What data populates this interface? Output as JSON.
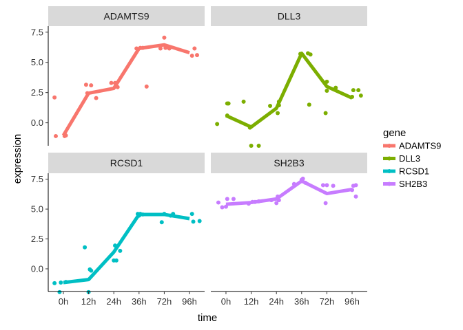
{
  "chart_data": {
    "type": "line",
    "facet_wrap": true,
    "categories": [
      "0h",
      "12h",
      "24h",
      "36h",
      "72h",
      "96h"
    ],
    "xlabel": "time",
    "ylabel": "expression",
    "ylim": [
      -1.9,
      8.0
    ],
    "y_ticks": [
      0.0,
      2.5,
      5.0,
      7.5
    ],
    "y_tick_labels": [
      "0.0",
      "2.5",
      "5.0",
      "7.5"
    ],
    "legend": {
      "title": "gene",
      "position": "right"
    },
    "grid": false,
    "series": [
      {
        "name": "ADAMTS9",
        "color": "#F8766D",
        "line": [
          -1.05,
          2.45,
          2.85,
          6.15,
          6.45,
          5.8
        ],
        "points": [
          [
            -0.3,
            -1.1
          ],
          [
            0.05,
            -1.1
          ],
          [
            0.1,
            -1.05
          ],
          [
            -0.35,
            2.1
          ],
          [
            0.1,
            3.1
          ],
          [
            -0.05,
            2.45
          ],
          [
            0.3,
            2.05
          ],
          [
            -0.1,
            3.15
          ],
          [
            -0.1,
            3.3
          ],
          [
            0.05,
            3.3
          ],
          [
            0.15,
            2.95
          ],
          [
            0.3,
            3.0
          ],
          [
            -0.1,
            6.15
          ],
          [
            0.05,
            6.2
          ],
          [
            0.15,
            6.2
          ],
          [
            0.0,
            7.05
          ],
          [
            0.05,
            6.2
          ],
          [
            0.2,
            6.15
          ],
          [
            -0.15,
            6.15
          ],
          [
            0.1,
            5.55
          ],
          [
            0.2,
            6.15
          ],
          [
            0.3,
            5.6
          ]
        ]
      },
      {
        "name": "DLL3",
        "color": "#7CAE00",
        "line": [
          0.6,
          -0.35,
          1.2,
          5.75,
          3.0,
          2.05
        ],
        "points": [
          [
            -0.35,
            -0.1
          ],
          [
            0.05,
            0.6
          ],
          [
            0.05,
            1.6
          ],
          [
            0.1,
            1.6
          ],
          [
            -0.3,
            1.75
          ],
          [
            -0.05,
            -0.4
          ],
          [
            0.0,
            -1.9
          ],
          [
            0.3,
            -1.9
          ],
          [
            0.1,
            1.75
          ],
          [
            -0.25,
            1.4
          ],
          [
            0.05,
            0.8
          ],
          [
            0.1,
            1.45
          ],
          [
            0.3,
            1.5
          ],
          [
            -0.05,
            5.7
          ],
          [
            0.25,
            5.75
          ],
          [
            0.35,
            5.65
          ],
          [
            0.0,
            3.4
          ],
          [
            0.0,
            2.65
          ],
          [
            0.35,
            2.9
          ],
          [
            -0.05,
            0.8
          ],
          [
            0.0,
            2.15
          ],
          [
            0.05,
            2.7
          ],
          [
            0.25,
            2.7
          ],
          [
            0.35,
            2.25
          ]
        ]
      },
      {
        "name": "RCSD1",
        "color": "#00BFC4",
        "line": [
          -1.15,
          -0.9,
          1.4,
          4.55,
          4.55,
          4.2
        ],
        "points": [
          [
            -0.35,
            -1.2
          ],
          [
            -0.1,
            -1.15
          ],
          [
            0.1,
            -1.1
          ],
          [
            -0.15,
            -1.95
          ],
          [
            0.0,
            -1.95
          ],
          [
            0.1,
            -0.15
          ],
          [
            0.05,
            -0.05
          ],
          [
            -0.15,
            1.8
          ],
          [
            0.0,
            0.7
          ],
          [
            0.05,
            1.95
          ],
          [
            0.1,
            0.7
          ],
          [
            0.25,
            1.5
          ],
          [
            -0.05,
            4.6
          ],
          [
            0.05,
            4.6
          ],
          [
            0.15,
            4.55
          ],
          [
            0.0,
            4.45
          ],
          [
            0.25,
            4.45
          ],
          [
            0.35,
            4.6
          ],
          [
            -0.1,
            3.9
          ],
          [
            0.0,
            4.6
          ],
          [
            0.1,
            4.6
          ],
          [
            0.15,
            3.95
          ],
          [
            0.4,
            4.0
          ]
        ]
      },
      {
        "name": "SH2B3",
        "color": "#C77CFF",
        "line": [
          5.4,
          5.55,
          5.85,
          7.35,
          6.3,
          6.65
        ],
        "points": [
          [
            -0.15,
            5.15
          ],
          [
            0.0,
            5.2
          ],
          [
            0.05,
            5.85
          ],
          [
            0.3,
            5.85
          ],
          [
            -0.3,
            5.55
          ],
          [
            -0.1,
            5.45
          ],
          [
            0.05,
            5.6
          ],
          [
            0.15,
            5.6
          ],
          [
            0.3,
            5.65
          ],
          [
            -0.2,
            5.75
          ],
          [
            0.0,
            5.5
          ],
          [
            0.05,
            6.05
          ],
          [
            0.1,
            5.75
          ],
          [
            -0.3,
            7.1
          ],
          [
            0.0,
            7.45
          ],
          [
            0.05,
            7.55
          ],
          [
            0.15,
            7.2
          ],
          [
            -0.05,
            5.5
          ],
          [
            0.0,
            7.0
          ],
          [
            0.25,
            6.95
          ],
          [
            -0.15,
            7.0
          ],
          [
            0.0,
            6.6
          ],
          [
            0.05,
            6.95
          ],
          [
            0.15,
            6.05
          ],
          [
            0.15,
            7.0
          ]
        ]
      }
    ]
  }
}
